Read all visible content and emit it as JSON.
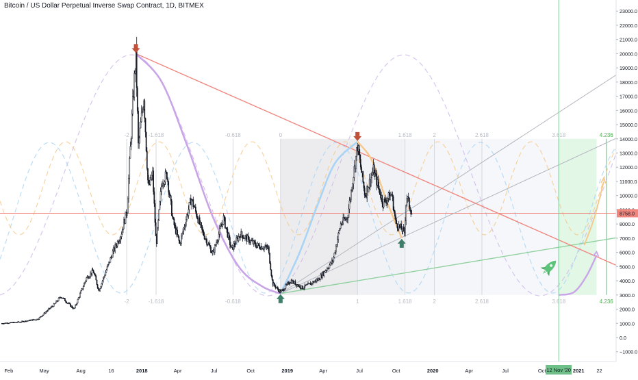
{
  "chart_data": {
    "type": "line",
    "title": "Bitcoin / US Dollar Perpetual Inverse Swap Contract, 1D, BITMEX",
    "ylim": [
      -1500,
      23500
    ],
    "y_ticks": [
      -1000,
      0,
      1000,
      2000,
      3000,
      4000,
      5000,
      6000,
      7000,
      8000,
      9000,
      10000,
      11000,
      12000,
      13000,
      14000,
      15000,
      16000,
      17000,
      18000,
      19000,
      20000,
      21000,
      22000,
      23000
    ],
    "y_tick_labels": [
      "−1000.0",
      "0.0",
      "1000.0",
      "2000.0",
      "3000.0",
      "4000.0",
      "5000.0",
      "6000.0",
      "7000.0",
      "8000.0",
      "9000.0",
      "10000.0",
      "11000.0",
      "12000.0",
      "13000.0",
      "14000.0",
      "15000.0",
      "16000.0",
      "17000.0",
      "18000.0",
      "19000.0",
      "20000.0",
      "21000.0",
      "22000.0",
      "23000.0"
    ],
    "x_ticks": [
      "Feb",
      "May",
      "Aug",
      "16",
      "2018",
      "Apr",
      "Jul",
      "Oct",
      "2019",
      "Apr",
      "Jul",
      "Oct",
      "2020",
      "Apr",
      "Jul",
      "Oct",
      "2021",
      "22"
    ],
    "x_ticks_bold": [
      "2018",
      "2019",
      "2020",
      "2021"
    ],
    "cursor_date_label": "12 Nov '20",
    "last_price_label": "8758.0",
    "last_price": 8758,
    "price_path": [
      [
        "2017-01-15",
        1000
      ],
      [
        "2017-03-01",
        1100
      ],
      [
        "2017-04-15",
        1300
      ],
      [
        "2017-05-25",
        2300
      ],
      [
        "2017-06-12",
        2900
      ],
      [
        "2017-07-15",
        2000
      ],
      [
        "2017-08-15",
        4200
      ],
      [
        "2017-09-01",
        4700
      ],
      [
        "2017-09-15",
        3300
      ],
      [
        "2017-10-20",
        6000
      ],
      [
        "2017-11-10",
        7300
      ],
      [
        "2017-11-25",
        9000
      ],
      [
        "2017-12-08",
        16000
      ],
      [
        "2017-12-17",
        20000
      ],
      [
        "2017-12-23",
        13500
      ],
      [
        "2018-01-06",
        17000
      ],
      [
        "2018-01-17",
        10500
      ],
      [
        "2018-01-28",
        11500
      ],
      [
        "2018-02-06",
        6500
      ],
      [
        "2018-02-20",
        11000
      ],
      [
        "2018-03-05",
        11500
      ],
      [
        "2018-03-20",
        8200
      ],
      [
        "2018-04-06",
        6600
      ],
      [
        "2018-05-05",
        9800
      ],
      [
        "2018-06-01",
        7500
      ],
      [
        "2018-06-28",
        5900
      ],
      [
        "2018-07-25",
        8400
      ],
      [
        "2018-08-14",
        6200
      ],
      [
        "2018-09-05",
        7300
      ],
      [
        "2018-10-15",
        6500
      ],
      [
        "2018-11-14",
        6300
      ],
      [
        "2018-11-25",
        3800
      ],
      [
        "2018-12-15",
        3200
      ],
      [
        "2019-01-10",
        4000
      ],
      [
        "2019-02-08",
        3500
      ],
      [
        "2019-03-20",
        4100
      ],
      [
        "2019-04-25",
        5400
      ],
      [
        "2019-05-15",
        8000
      ],
      [
        "2019-06-01",
        8500
      ],
      [
        "2019-06-26",
        13500
      ],
      [
        "2019-07-15",
        10000
      ],
      [
        "2019-08-05",
        11800
      ],
      [
        "2019-08-29",
        9500
      ],
      [
        "2019-09-20",
        10100
      ],
      [
        "2019-09-30",
        8100
      ],
      [
        "2019-10-22",
        7400
      ],
      [
        "2019-10-27",
        10000
      ],
      [
        "2019-11-10",
        8700
      ]
    ],
    "markers": [
      {
        "date": "2017-12-17",
        "price": 20000,
        "kind": "top"
      },
      {
        "date": "2019-06-26",
        "price": 13800,
        "kind": "top"
      },
      {
        "date": "2018-12-15",
        "price": 3100,
        "kind": "bottom"
      },
      {
        "date": "2019-10-15",
        "price": 7000,
        "kind": "bottom"
      }
    ],
    "fib_time_labels": [
      "-2",
      "-1.618",
      "-0.618",
      "0",
      "1",
      "1.618",
      "2",
      "2.618",
      "3.618",
      "4.236"
    ],
    "horizontal_line_price": 8758,
    "downtrend_line": [
      [
        "2017-12-17",
        20000
      ],
      [
        "2021-02-15",
        5700
      ]
    ],
    "green_trend_line": [
      [
        "2018-12-15",
        3100
      ],
      [
        "2021-02-15",
        6800
      ]
    ],
    "fan_lines": [
      [
        [
          "2018-12-15",
          3100
        ],
        [
          "2021-02-15",
          17600
        ]
      ],
      [
        [
          "2018-12-15",
          3100
        ],
        [
          "2021-02-15",
          13400
        ]
      ]
    ],
    "cycle_bottom_curve": [
      [
        "2017-12-17",
        20000
      ],
      [
        "2018-02-20",
        18000
      ],
      [
        "2018-04-25",
        13500
      ],
      [
        "2018-06-28",
        8500
      ],
      [
        "2018-09-01",
        5000
      ],
      [
        "2018-10-30",
        3600
      ],
      [
        "2018-12-15",
        3100
      ]
    ],
    "cycle_rise_curve": [
      [
        "2018-12-15",
        3100
      ],
      [
        "2019-02-01",
        6000
      ],
      [
        "2019-03-20",
        9500
      ],
      [
        "2019-05-01",
        12300
      ],
      [
        "2019-06-26",
        13800
      ]
    ],
    "cycle_drop_curve": [
      [
        "2019-06-26",
        13800
      ],
      [
        "2019-08-01",
        12500
      ],
      [
        "2019-09-05",
        9800
      ],
      [
        "2019-10-15",
        7000
      ]
    ],
    "projected_rise_curve": [
      [
        "2020-11-12",
        3000
      ],
      [
        "2020-12-20",
        3200
      ],
      [
        "2021-01-20",
        4300
      ],
      [
        "2021-02-15",
        5800
      ]
    ],
    "projected_orange_curve": [
      [
        "2021-01-15",
        6500
      ],
      [
        "2021-02-10",
        8500
      ],
      [
        "2021-03-05",
        11000
      ]
    ],
    "green_zone": {
      "from": "2020-11-12",
      "to": "2021-02-15",
      "price_top": 14000,
      "price_bottom": 3000
    },
    "rocket_icon": "rocket-icon",
    "colors": {
      "up": "#26a69a",
      "down": "#ef5350",
      "candles": "#131722",
      "downtrend": "#f0877f",
      "green_line": "#8fd19e",
      "fan": "#b2b5be",
      "horizontal": "#f0877f",
      "purple": "#c9a5e8",
      "blue": "#a9d4f5",
      "orange": "#f6c889",
      "fib_text": "#b8bcc6",
      "fib_green_text": "#4caf50",
      "top_arrow": "#c0523c",
      "bottom_arrow": "#3f7f6a",
      "price_label_bg": "#f0877f"
    }
  }
}
